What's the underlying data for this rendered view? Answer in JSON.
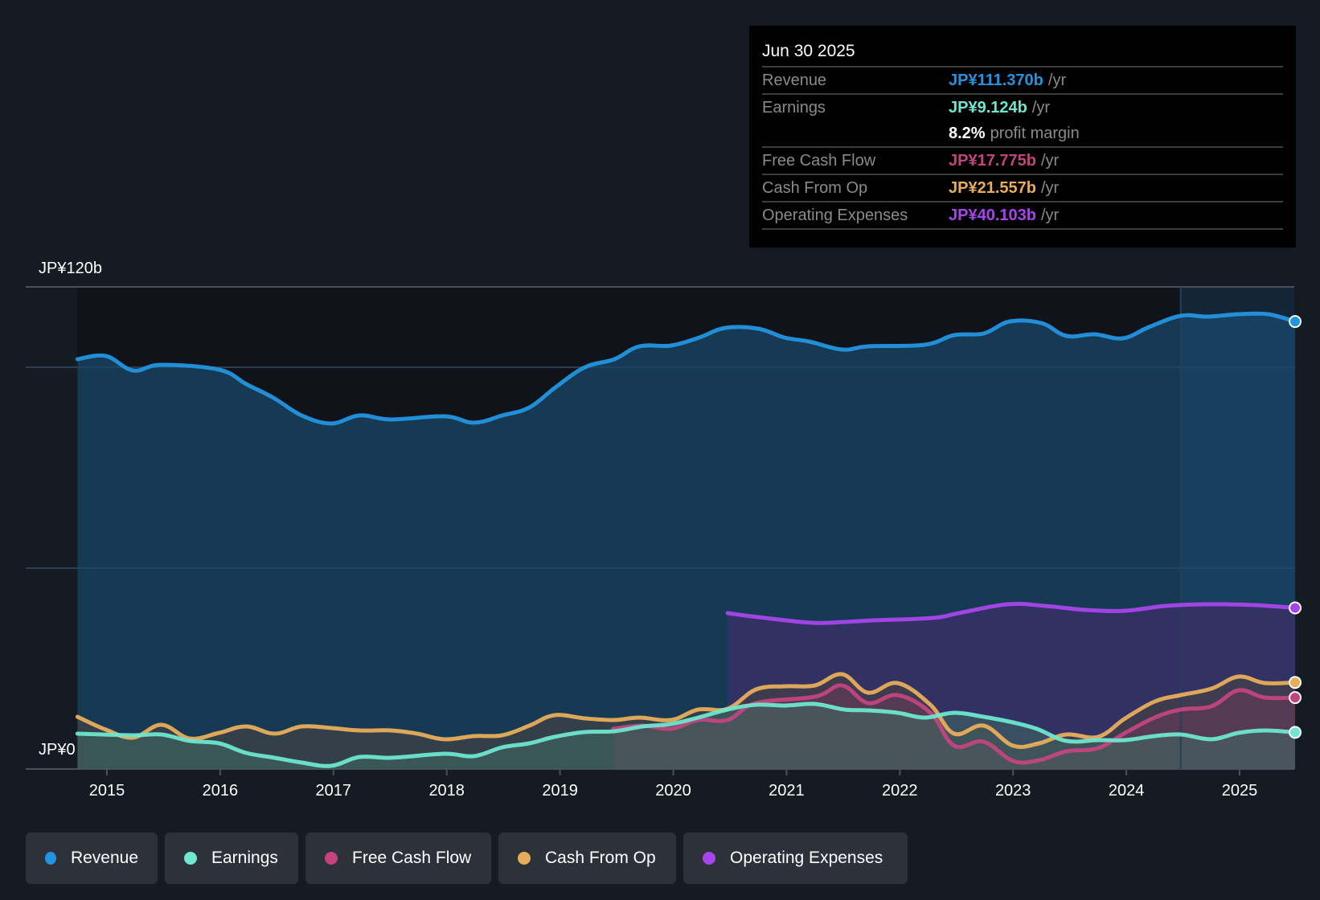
{
  "tooltip": {
    "date": "Jun 30 2025",
    "rows": [
      {
        "label": "Revenue",
        "value": "JP¥111.370b",
        "unit": "/yr",
        "color": "#2394df"
      },
      {
        "label": "Earnings",
        "value": "JP¥9.124b",
        "unit": "/yr",
        "color": "#6ee6d0"
      },
      {
        "label": "",
        "value": "8.2%",
        "unit": "profit margin",
        "color": "#ffffff"
      },
      {
        "label": "Free Cash Flow",
        "value": "JP¥17.775b",
        "unit": "/yr",
        "color": "#c2447f"
      },
      {
        "label": "Cash From Op",
        "value": "JP¥21.557b",
        "unit": "/yr",
        "color": "#e8ad5b"
      },
      {
        "label": "Operating Expenses",
        "value": "JP¥40.103b",
        "unit": "/yr",
        "color": "#a646ea"
      }
    ]
  },
  "legend": [
    {
      "label": "Revenue",
      "color": "#2394df"
    },
    {
      "label": "Earnings",
      "color": "#6ee6d0"
    },
    {
      "label": "Free Cash Flow",
      "color": "#c2447f"
    },
    {
      "label": "Cash From Op",
      "color": "#e8ad5b"
    },
    {
      "label": "Operating Expenses",
      "color": "#a646ea"
    }
  ],
  "chart_data": {
    "type": "area",
    "title": "",
    "xlabel": "",
    "ylabel": "",
    "y_axis_labels": [
      "JP¥120b",
      "JP¥0"
    ],
    "ylim": [
      0,
      120
    ],
    "y_gridlines": [
      0,
      50,
      100,
      120
    ],
    "xlim": [
      2014.74,
      2025.49
    ],
    "x_ticks": [
      2015,
      2016,
      2017,
      2018,
      2019,
      2020,
      2021,
      2022,
      2023,
      2024,
      2025
    ],
    "x_tick_labels": [
      "2015",
      "2016",
      "2017",
      "2018",
      "2019",
      "2020",
      "2021",
      "2022",
      "2023",
      "2024",
      "2025"
    ],
    "highlight_range": [
      2024.48,
      2025.49
    ],
    "units": "JP¥ billions",
    "series": [
      {
        "name": "Revenue",
        "color": "#2394df",
        "fill": "#1b4a6e",
        "points": [
          [
            2014.74,
            102.0
          ],
          [
            2014.99,
            102.8
          ],
          [
            2015.23,
            99.2
          ],
          [
            2015.48,
            100.6
          ],
          [
            2015.99,
            99.4
          ],
          [
            2016.23,
            95.8
          ],
          [
            2016.47,
            92.4
          ],
          [
            2016.72,
            88.0
          ],
          [
            2016.98,
            86.0
          ],
          [
            2017.23,
            88.0
          ],
          [
            2017.51,
            87.0
          ],
          [
            2017.98,
            87.8
          ],
          [
            2018.24,
            86.2
          ],
          [
            2018.49,
            88.0
          ],
          [
            2018.73,
            90.0
          ],
          [
            2018.96,
            95.0
          ],
          [
            2019.22,
            100.0
          ],
          [
            2019.48,
            102.0
          ],
          [
            2019.7,
            105.2
          ],
          [
            2019.98,
            105.4
          ],
          [
            2020.23,
            107.4
          ],
          [
            2020.46,
            109.8
          ],
          [
            2020.75,
            109.6
          ],
          [
            2020.98,
            107.4
          ],
          [
            2021.2,
            106.4
          ],
          [
            2021.49,
            104.4
          ],
          [
            2021.72,
            105.2
          ],
          [
            2022.22,
            105.6
          ],
          [
            2022.48,
            108.0
          ],
          [
            2022.74,
            108.4
          ],
          [
            2022.97,
            111.4
          ],
          [
            2023.25,
            111.0
          ],
          [
            2023.47,
            107.8
          ],
          [
            2023.72,
            108.2
          ],
          [
            2023.97,
            107.2
          ],
          [
            2024.2,
            110.0
          ],
          [
            2024.48,
            112.8
          ],
          [
            2024.72,
            112.6
          ],
          [
            2024.99,
            113.2
          ],
          [
            2025.25,
            113.2
          ],
          [
            2025.49,
            111.37
          ]
        ]
      },
      {
        "name": "Earnings",
        "color": "#6ee6d0",
        "fill": "#3f6a62",
        "points": [
          [
            2014.74,
            8.8
          ],
          [
            2015.23,
            8.4
          ],
          [
            2015.48,
            8.6
          ],
          [
            2015.73,
            7.0
          ],
          [
            2015.99,
            6.4
          ],
          [
            2016.23,
            4.0
          ],
          [
            2016.48,
            2.8
          ],
          [
            2016.72,
            1.6
          ],
          [
            2016.98,
            0.8
          ],
          [
            2017.23,
            3.0
          ],
          [
            2017.51,
            2.8
          ],
          [
            2017.98,
            3.8
          ],
          [
            2018.24,
            3.2
          ],
          [
            2018.49,
            5.4
          ],
          [
            2018.73,
            6.4
          ],
          [
            2018.95,
            8.0
          ],
          [
            2019.22,
            9.2
          ],
          [
            2019.48,
            9.4
          ],
          [
            2019.73,
            10.6
          ],
          [
            2019.98,
            11.2
          ],
          [
            2020.22,
            12.8
          ],
          [
            2020.48,
            14.8
          ],
          [
            2020.73,
            16.0
          ],
          [
            2020.99,
            15.8
          ],
          [
            2021.25,
            16.2
          ],
          [
            2021.51,
            14.8
          ],
          [
            2021.72,
            14.6
          ],
          [
            2021.98,
            14.0
          ],
          [
            2022.22,
            12.8
          ],
          [
            2022.48,
            14.0
          ],
          [
            2022.74,
            13.0
          ],
          [
            2023.0,
            11.6
          ],
          [
            2023.21,
            10.0
          ],
          [
            2023.47,
            7.0
          ],
          [
            2023.75,
            7.2
          ],
          [
            2023.99,
            7.2
          ],
          [
            2024.25,
            8.2
          ],
          [
            2024.48,
            8.6
          ],
          [
            2024.75,
            7.4
          ],
          [
            2024.99,
            9.0
          ],
          [
            2025.22,
            9.6
          ],
          [
            2025.49,
            9.124
          ]
        ]
      },
      {
        "name": "Free Cash Flow",
        "color": "#c2447f",
        "fill": "#6a3a58",
        "points": [
          [
            2019.47,
            10.0
          ],
          [
            2019.73,
            10.8
          ],
          [
            2019.98,
            10.0
          ],
          [
            2020.22,
            12.2
          ],
          [
            2020.48,
            12.2
          ],
          [
            2020.73,
            16.4
          ],
          [
            2021.25,
            18.0
          ],
          [
            2021.49,
            20.8
          ],
          [
            2021.72,
            16.4
          ],
          [
            2021.98,
            18.4
          ],
          [
            2022.27,
            14.0
          ],
          [
            2022.48,
            5.8
          ],
          [
            2022.74,
            6.8
          ],
          [
            2023.0,
            2.0
          ],
          [
            2023.23,
            2.2
          ],
          [
            2023.47,
            4.4
          ],
          [
            2023.75,
            5.2
          ],
          [
            2023.99,
            9.0
          ],
          [
            2024.25,
            12.8
          ],
          [
            2024.48,
            14.8
          ],
          [
            2024.75,
            15.6
          ],
          [
            2024.99,
            19.6
          ],
          [
            2025.22,
            17.8
          ],
          [
            2025.49,
            17.775
          ]
        ]
      },
      {
        "name": "Cash From Op",
        "color": "#e8ad5b",
        "fill": "#4a4440",
        "points": [
          [
            2014.74,
            13.0
          ],
          [
            2014.99,
            9.8
          ],
          [
            2015.23,
            7.8
          ],
          [
            2015.48,
            11.0
          ],
          [
            2015.73,
            7.6
          ],
          [
            2015.99,
            9.0
          ],
          [
            2016.23,
            10.6
          ],
          [
            2016.48,
            8.8
          ],
          [
            2016.72,
            10.6
          ],
          [
            2016.98,
            10.2
          ],
          [
            2017.23,
            9.6
          ],
          [
            2017.51,
            9.6
          ],
          [
            2017.74,
            8.8
          ],
          [
            2017.98,
            7.4
          ],
          [
            2018.24,
            8.2
          ],
          [
            2018.49,
            8.4
          ],
          [
            2018.73,
            10.8
          ],
          [
            2018.95,
            13.4
          ],
          [
            2019.22,
            12.6
          ],
          [
            2019.48,
            12.2
          ],
          [
            2019.7,
            12.8
          ],
          [
            2019.98,
            12.2
          ],
          [
            2020.22,
            14.8
          ],
          [
            2020.48,
            15.0
          ],
          [
            2020.73,
            19.8
          ],
          [
            2020.99,
            20.6
          ],
          [
            2021.25,
            20.8
          ],
          [
            2021.49,
            23.6
          ],
          [
            2021.72,
            19.0
          ],
          [
            2021.98,
            21.4
          ],
          [
            2022.27,
            16.0
          ],
          [
            2022.48,
            8.8
          ],
          [
            2022.74,
            10.8
          ],
          [
            2023.0,
            5.8
          ],
          [
            2023.23,
            6.4
          ],
          [
            2023.47,
            8.6
          ],
          [
            2023.75,
            8.0
          ],
          [
            2023.99,
            12.6
          ],
          [
            2024.25,
            16.8
          ],
          [
            2024.48,
            18.4
          ],
          [
            2024.75,
            20.0
          ],
          [
            2024.99,
            23.0
          ],
          [
            2025.22,
            21.4
          ],
          [
            2025.49,
            21.557
          ]
        ]
      },
      {
        "name": "Operating Expenses",
        "color": "#a646ea",
        "fill": "#3b2f68",
        "points": [
          [
            2020.48,
            38.8
          ],
          [
            2020.75,
            37.8
          ],
          [
            2021.22,
            36.4
          ],
          [
            2021.51,
            36.6
          ],
          [
            2021.77,
            37.0
          ],
          [
            2022.29,
            37.6
          ],
          [
            2022.52,
            38.8
          ],
          [
            2022.95,
            41.0
          ],
          [
            2023.28,
            40.6
          ],
          [
            2023.64,
            39.6
          ],
          [
            2023.99,
            39.4
          ],
          [
            2024.35,
            40.6
          ],
          [
            2024.7,
            41.0
          ],
          [
            2025.13,
            40.8
          ],
          [
            2025.49,
            40.103
          ]
        ]
      }
    ]
  }
}
